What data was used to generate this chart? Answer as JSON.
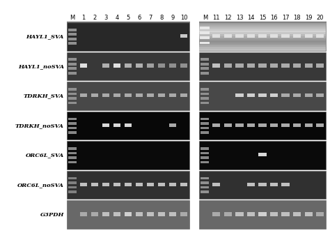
{
  "lane_labels_left": [
    "M",
    "1",
    "2",
    "3",
    "4",
    "5",
    "6",
    "7",
    "8",
    "9",
    "10"
  ],
  "lane_labels_right": [
    "M",
    "11",
    "12",
    "13",
    "14",
    "15",
    "16",
    "17",
    "18",
    "19",
    "20"
  ],
  "row_labels": [
    "HAYL1_SVA",
    "HAYL1_noSVA",
    "TDRKH_SVA",
    "TDRKH_noSVA",
    "ORC6L_SVA",
    "ORC6L_noSVA",
    "G3PDH"
  ],
  "row_label_italic": [
    "HAYL1",
    "HAYL1",
    "TDRKH",
    "TDRKH",
    "ORC6L",
    "ORC6L",
    "G3PDH"
  ],
  "row_label_suffix": [
    "_SVA",
    "_noSVA",
    "_SVA",
    "_noSVA",
    "_SVA",
    "_noSVA",
    ""
  ],
  "bg_left": [
    "#282828",
    "#383838",
    "#484848",
    "#080808",
    "#0a0a0a",
    "#303030",
    "#686868"
  ],
  "bg_right": [
    "#b8b8b8",
    "#383838",
    "#484848",
    "#080808",
    "#0a0a0a",
    "#303030",
    "#686868"
  ],
  "hayl1_sva_right_top_band_color": "#c0c0c0",
  "hayl1_sva_right_bottom_band_color": "#909090",
  "marker_color_dark": "#888888",
  "marker_color_light": "#bbbbbb",
  "band_color_bright": "#e8e8e8",
  "band_color_medium": "#c0c0c0",
  "band_color_dim": "#909090",
  "rows_data": {
    "left": {
      "HAYL1_SVA": {
        "has_marker": true,
        "lanes": [
          10
        ],
        "colors": [
          "#c8c8c8"
        ]
      },
      "HAYL1_noSVA": {
        "has_marker": true,
        "lanes": [
          1,
          3,
          4,
          5,
          6,
          7,
          8,
          9,
          10
        ],
        "colors": [
          "#e0e0e0",
          "#b0b0b0",
          "#e0e0e0",
          "#b0b0b0",
          "#b0b0b0",
          "#a0a0a0",
          "#909090",
          "#909090",
          "#909090"
        ]
      },
      "TDRKH_SVA": {
        "has_marker": true,
        "lanes": [
          1,
          2,
          3,
          4,
          5,
          6,
          7,
          8,
          9,
          10
        ],
        "colors": [
          "#aaaaaa",
          "#aaaaaa",
          "#aaaaaa",
          "#aaaaaa",
          "#aaaaaa",
          "#aaaaaa",
          "#aaaaaa",
          "#aaaaaa",
          "#aaaaaa",
          "#aaaaaa"
        ]
      },
      "TDRKH_noSVA": {
        "has_marker": true,
        "lanes": [
          3,
          4,
          5,
          9
        ],
        "colors": [
          "#d8d8d8",
          "#d8d8d8",
          "#d8d8d8",
          "#aaaaaa"
        ]
      },
      "ORC6L_SVA": {
        "has_marker": true,
        "lanes": [],
        "colors": []
      },
      "ORC6L_noSVA": {
        "has_marker": true,
        "lanes": [
          1,
          2,
          3,
          4,
          5,
          6,
          7,
          8,
          9,
          10
        ],
        "colors": [
          "#c0c0c0",
          "#c0c0c0",
          "#c0c0c0",
          "#c0c0c0",
          "#c0c0c0",
          "#c0c0c0",
          "#c0c0c0",
          "#c0c0c0",
          "#c0c0c0",
          "#c0c0c0"
        ]
      },
      "G3PDH": {
        "has_marker": false,
        "lanes": [
          1,
          2,
          3,
          4,
          5,
          6,
          7,
          8,
          9,
          10
        ],
        "colors": [
          "#aaaaaa",
          "#aaaaaa",
          "#c0c0c0",
          "#c0c0c0",
          "#d0d0d0",
          "#c0c0c0",
          "#c0c0c0",
          "#c0c0c0",
          "#c0c0c0",
          "#aaaaaa"
        ]
      }
    },
    "right": {
      "HAYL1_SVA": {
        "has_marker": true,
        "lanes": [
          1,
          2,
          3,
          4,
          5,
          6,
          7,
          8,
          9,
          10
        ],
        "colors": [
          "#e0e0e0",
          "#e0e0e0",
          "#e0e0e0",
          "#e0e0e0",
          "#e0e0e0",
          "#e0e0e0",
          "#e0e0e0",
          "#e0e0e0",
          "#e0e0e0",
          "#e0e0e0"
        ]
      },
      "HAYL1_noSVA": {
        "has_marker": true,
        "lanes": [
          1,
          2,
          3,
          4,
          5,
          6,
          7,
          8,
          9,
          10
        ],
        "colors": [
          "#c0c0c0",
          "#aaaaaa",
          "#aaaaaa",
          "#aaaaaa",
          "#aaaaaa",
          "#aaaaaa",
          "#aaaaaa",
          "#aaaaaa",
          "#aaaaaa",
          "#aaaaaa"
        ]
      },
      "TDRKH_SVA": {
        "has_marker": true,
        "lanes": [
          3,
          4,
          5,
          6,
          7,
          8,
          9,
          10
        ],
        "colors": [
          "#d0d0d0",
          "#d0d0d0",
          "#d0d0d0",
          "#d0d0d0",
          "#aaaaaa",
          "#aaaaaa",
          "#aaaaaa",
          "#aaaaaa"
        ]
      },
      "TDRKH_noSVA": {
        "has_marker": true,
        "lanes": [
          1,
          2,
          3,
          4,
          5,
          6,
          7,
          8,
          9,
          10
        ],
        "colors": [
          "#aaaaaa",
          "#aaaaaa",
          "#aaaaaa",
          "#aaaaaa",
          "#aaaaaa",
          "#aaaaaa",
          "#aaaaaa",
          "#aaaaaa",
          "#aaaaaa",
          "#aaaaaa"
        ]
      },
      "ORC6L_SVA": {
        "has_marker": true,
        "lanes": [
          5
        ],
        "colors": [
          "#d8d8d8"
        ]
      },
      "ORC6L_noSVA": {
        "has_marker": true,
        "lanes": [
          1,
          4,
          5,
          6,
          7
        ],
        "colors": [
          "#c0c0c0",
          "#c0c0c0",
          "#c0c0c0",
          "#c0c0c0",
          "#c0c0c0"
        ]
      },
      "G3PDH": {
        "has_marker": false,
        "lanes": [
          1,
          2,
          3,
          4,
          5,
          6,
          7,
          8,
          9,
          10
        ],
        "colors": [
          "#aaaaaa",
          "#aaaaaa",
          "#c0c0c0",
          "#c0c0c0",
          "#d0d0d0",
          "#c0c0c0",
          "#c0c0c0",
          "#c0c0c0",
          "#c0c0c0",
          "#aaaaaa"
        ]
      }
    }
  },
  "hayl1_sva_right_stripe_colors": [
    "#909090",
    "#b0b0b0",
    "#c8c8c8",
    "#b0b0b0",
    "#909090"
  ],
  "hayl1_sva_right_marker_colors": [
    "#d0d0d0",
    "#c0c0c0",
    "#b0b0b0",
    "#a0a0a0"
  ]
}
